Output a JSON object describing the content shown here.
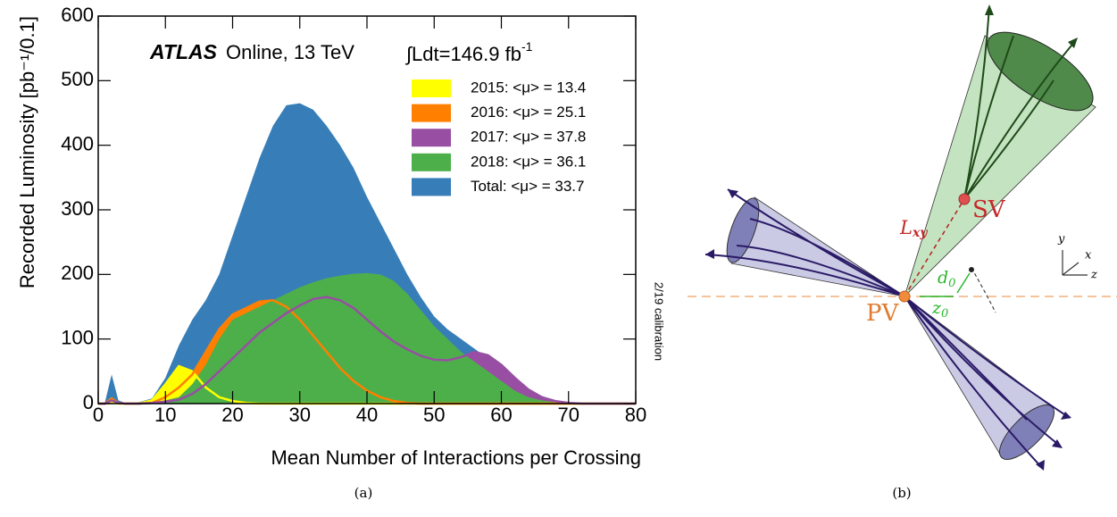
{
  "chart_data": {
    "type": "area",
    "experiment": "ATLAS",
    "subtitle": "Online, 13 TeV",
    "luminosity": "∫Ldt=146.9 fb",
    "luminosity_unit_power": "-1",
    "x_label": "Mean Number of Interactions per Crossing",
    "y_label": "Recorded Luminosity [pb⁻¹/0.1]",
    "side_note": "2/19 calibration",
    "x": [
      0,
      1,
      2,
      3,
      4,
      6,
      8,
      10,
      12,
      14,
      16,
      18,
      20,
      22,
      24,
      26,
      28,
      30,
      32,
      34,
      36,
      38,
      40,
      42,
      44,
      46,
      48,
      50,
      52,
      54,
      56,
      58,
      60,
      62,
      64,
      66,
      68,
      70,
      72,
      74,
      76,
      78,
      80
    ],
    "series": [
      {
        "name": "2015: <μ> = 13.4",
        "color": "#ffff00",
        "values": [
          0,
          0,
          3,
          0,
          0,
          0,
          5,
          30,
          58,
          50,
          25,
          10,
          4,
          1,
          0,
          0,
          0,
          0,
          0,
          0,
          0,
          0,
          0,
          0,
          0,
          0,
          0,
          0,
          0,
          0,
          0,
          0,
          0,
          0,
          0,
          0,
          0,
          0,
          0,
          0,
          0,
          0,
          0
        ]
      },
      {
        "name": "2016: <μ> = 25.1",
        "color": "#ff7f00",
        "values": [
          0,
          0,
          8,
          1,
          0,
          0,
          1,
          10,
          25,
          45,
          80,
          115,
          138,
          148,
          158,
          160,
          150,
          130,
          105,
          80,
          55,
          35,
          20,
          10,
          4,
          1,
          0,
          0,
          0,
          0,
          0,
          0,
          0,
          0,
          0,
          0,
          0,
          0,
          0,
          0,
          0,
          0,
          0
        ]
      },
      {
        "name": "2017: <μ> = 37.8",
        "color": "#984ea3",
        "values": [
          0,
          0,
          5,
          1,
          0,
          0,
          1,
          3,
          6,
          15,
          30,
          50,
          70,
          90,
          110,
          125,
          140,
          152,
          162,
          165,
          160,
          148,
          130,
          112,
          96,
          84,
          74,
          68,
          67,
          72,
          80,
          75,
          60,
          40,
          22,
          10,
          4,
          1,
          0,
          0,
          0,
          0,
          0
        ]
      },
      {
        "name": "2018: <μ> = 36.1",
        "color": "#4daf4a",
        "values": [
          0,
          1,
          10,
          2,
          0,
          1,
          2,
          5,
          10,
          30,
          60,
          100,
          130,
          140,
          150,
          160,
          170,
          180,
          188,
          194,
          198,
          201,
          202,
          200,
          190,
          170,
          145,
          120,
          100,
          80,
          65,
          50,
          35,
          20,
          10,
          5,
          2,
          1,
          0,
          0,
          0,
          0,
          0
        ]
      },
      {
        "name": "Total: <μ> = 33.7",
        "color": "#377eb8",
        "values": [
          0,
          2,
          45,
          5,
          1,
          2,
          8,
          40,
          90,
          130,
          160,
          200,
          260,
          320,
          380,
          430,
          462,
          465,
          455,
          430,
          400,
          365,
          320,
          280,
          240,
          200,
          165,
          135,
          115,
          100,
          85,
          70,
          55,
          38,
          22,
          12,
          5,
          2,
          1,
          0,
          0,
          0,
          0
        ]
      }
    ],
    "xlim": [
      0,
      80
    ],
    "xticks": [
      0,
      10,
      20,
      30,
      40,
      50,
      60,
      70,
      80
    ],
    "ylim": [
      0,
      600
    ],
    "yticks": [
      0,
      100,
      200,
      300,
      400,
      500,
      600
    ]
  },
  "diagram": {
    "sv": "SV",
    "pv": "PV",
    "lxy": {
      "main": "L",
      "sub": "xy"
    },
    "d0": {
      "main": "d",
      "sub": "0"
    },
    "z0": {
      "main": "z",
      "sub": "0"
    },
    "axes": {
      "y": "y",
      "x": "x",
      "z": "z"
    }
  },
  "captions": [
    "(a)",
    "(b)"
  ]
}
